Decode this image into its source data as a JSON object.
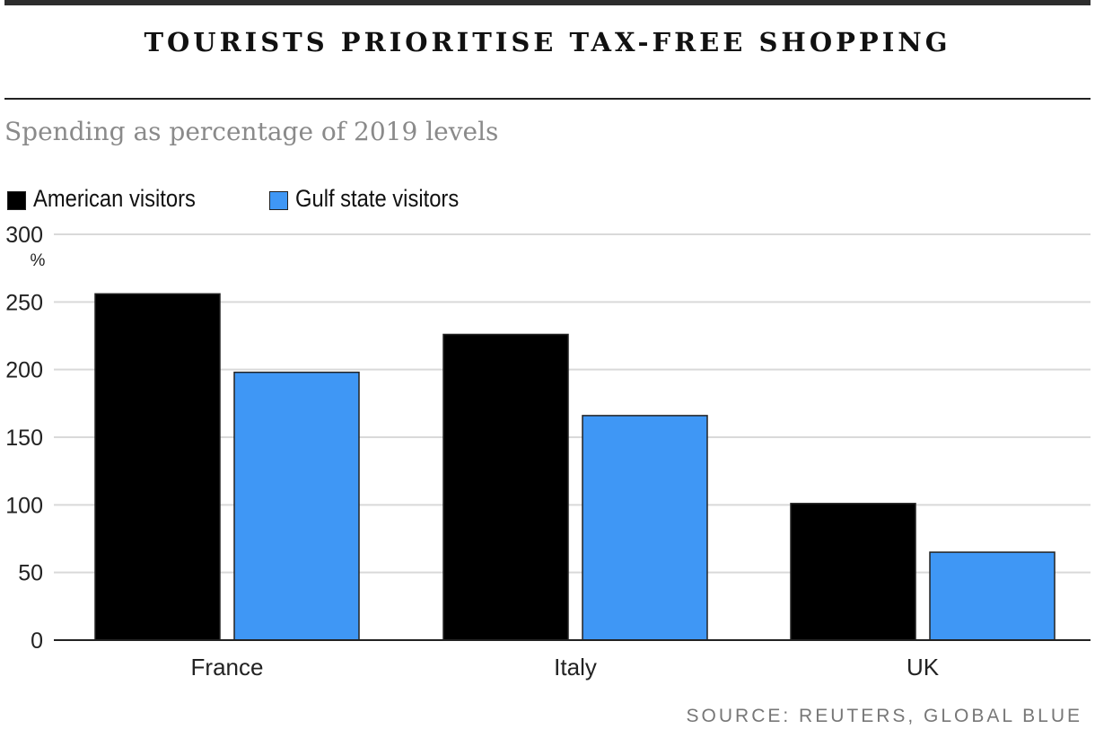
{
  "header": {
    "title": "TOURISTS PRIORITISE TAX-FREE SHOPPING",
    "subtitle": "Spending as percentage of 2019 levels"
  },
  "legend": {
    "items": [
      {
        "label": "American visitors",
        "color": "#000000"
      },
      {
        "label": "Gulf state visitors",
        "color": "#3f97f5"
      }
    ]
  },
  "chart_data": {
    "type": "bar",
    "title": "TOURISTS PRIORITISE TAX-FREE SHOPPING",
    "subtitle": "Spending as percentage of 2019 levels",
    "categories": [
      "France",
      "Italy",
      "UK"
    ],
    "series": [
      {
        "name": "American visitors",
        "color": "#000000",
        "values": [
          256,
          226,
          101
        ]
      },
      {
        "name": "Gulf state visitors",
        "color": "#3f97f5",
        "values": [
          198,
          166,
          65
        ]
      }
    ],
    "ylim": [
      0,
      300
    ],
    "yticks": [
      0,
      50,
      100,
      150,
      200,
      250,
      300
    ],
    "ytick_labels": [
      "0",
      "50",
      "100",
      "150",
      "200",
      "250",
      "300"
    ],
    "yunit": "%",
    "xlabel": "",
    "ylabel": "",
    "grid": true,
    "legend_position": "top-left"
  },
  "footer": {
    "source": "SOURCE: REUTERS, GLOBAL BLUE"
  }
}
